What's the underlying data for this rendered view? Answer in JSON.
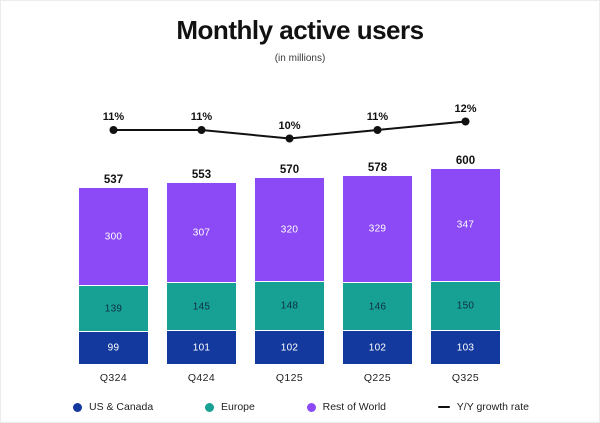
{
  "header": {
    "title": "Monthly active users",
    "subtitle": "(in millions)"
  },
  "chart_data": {
    "type": "bar",
    "variant": "stacked-bar-with-line",
    "title": "Monthly active users",
    "subtitle": "(in millions)",
    "categories": [
      "Q324",
      "Q424",
      "Q125",
      "Q225",
      "Q325"
    ],
    "series": [
      {
        "name": "US & Canada",
        "color": "#14399E",
        "label_color": "#FFFFFF",
        "values": [
          99,
          101,
          102,
          102,
          103
        ]
      },
      {
        "name": "Europe",
        "color": "#17A094",
        "label_color": "#0D3044",
        "values": [
          139,
          145,
          148,
          146,
          150
        ]
      },
      {
        "name": "Rest of World",
        "color": "#8B4AF5",
        "label_color": "#FFFFFF",
        "values": [
          300,
          307,
          320,
          329,
          347
        ]
      }
    ],
    "totals": [
      537,
      553,
      570,
      578,
      600
    ],
    "line": {
      "name": "Y/Y growth rate",
      "color": "#111111",
      "values_pct": [
        11,
        11,
        10,
        11,
        12
      ],
      "labels": [
        "11%",
        "11%",
        "10%",
        "11%",
        "12%"
      ]
    },
    "legend_position": "bottom",
    "grid": false,
    "ylim": [
      0,
      620
    ]
  },
  "legend": {
    "items": [
      {
        "label": "US & Canada",
        "color": "#14399E",
        "marker": "dot"
      },
      {
        "label": "Europe",
        "color": "#17A094",
        "marker": "dot"
      },
      {
        "label": "Rest of World",
        "color": "#8B4AF5",
        "marker": "dot"
      },
      {
        "label": "Y/Y growth rate",
        "color": "#111111",
        "marker": "dash"
      }
    ]
  }
}
